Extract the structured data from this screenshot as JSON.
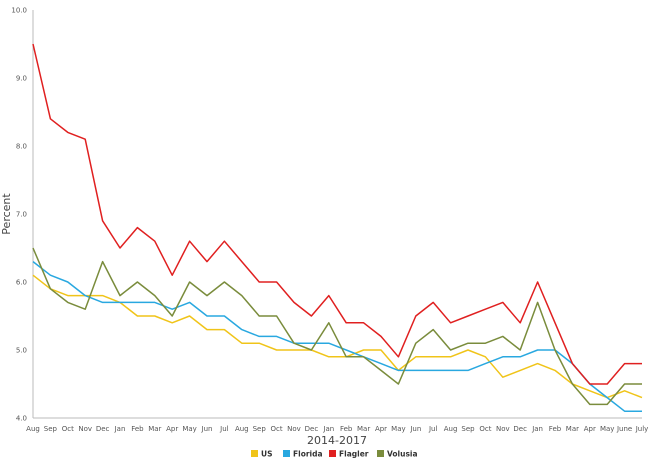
{
  "chart_data": {
    "type": "line",
    "title": "",
    "xlabel": "2014-2017",
    "ylabel": "Percent",
    "ylim": [
      4.0,
      10.0
    ],
    "yticks": [
      "4.0",
      "5.0",
      "6.0",
      "7.0",
      "8.0",
      "9.0",
      "10.0"
    ],
    "grid": false,
    "legend": "bottom-center",
    "categories": [
      "Aug",
      "Sep",
      "Oct",
      "Nov",
      "Dec",
      "Jan",
      "Feb",
      "Mar",
      "Apr",
      "May",
      "Jun",
      "Jul",
      "Aug",
      "Sep",
      "Oct",
      "Nov",
      "Dec",
      "Jan",
      "Feb",
      "Mar",
      "Apr",
      "May",
      "Jun",
      "Jul",
      "Aug",
      "Sep",
      "Oct",
      "Nov",
      "Dec",
      "Jan",
      "Feb",
      "Mar",
      "Apr",
      "May",
      "June",
      "July"
    ],
    "series": [
      {
        "name": "US",
        "color": "#f0c419",
        "values": [
          6.1,
          5.9,
          5.8,
          5.8,
          5.8,
          5.7,
          5.5,
          5.5,
          5.4,
          5.5,
          5.3,
          5.3,
          5.1,
          5.1,
          5.0,
          5.0,
          5.0,
          4.9,
          4.9,
          5.0,
          5.0,
          4.7,
          4.9,
          4.9,
          4.9,
          5.0,
          4.9,
          4.6,
          4.7,
          4.8,
          4.7,
          4.5,
          4.4,
          4.3,
          4.4,
          4.3
        ]
      },
      {
        "name": "Florida",
        "color": "#29a8e0",
        "values": [
          6.3,
          6.1,
          6.0,
          5.8,
          5.7,
          5.7,
          5.7,
          5.7,
          5.6,
          5.7,
          5.5,
          5.5,
          5.3,
          5.2,
          5.2,
          5.1,
          5.1,
          5.1,
          5.0,
          4.9,
          4.8,
          4.7,
          4.7,
          4.7,
          4.7,
          4.7,
          4.8,
          4.9,
          4.9,
          5.0,
          5.0,
          4.8,
          4.5,
          4.3,
          4.1,
          4.1
        ]
      },
      {
        "name": "Flagler",
        "color": "#e02020",
        "values": [
          9.5,
          8.4,
          8.2,
          8.1,
          6.9,
          6.5,
          6.8,
          6.6,
          6.1,
          6.6,
          6.3,
          6.6,
          6.3,
          6.0,
          6.0,
          5.7,
          5.5,
          5.8,
          5.4,
          5.4,
          5.2,
          4.9,
          5.5,
          5.7,
          5.4,
          5.5,
          5.6,
          5.7,
          5.4,
          6.0,
          5.4,
          4.8,
          4.5,
          4.5,
          4.8,
          4.8
        ]
      },
      {
        "name": "Volusia",
        "color": "#7a8c3c",
        "values": [
          6.5,
          5.9,
          5.7,
          5.6,
          6.3,
          5.8,
          6.0,
          5.8,
          5.5,
          6.0,
          5.8,
          6.0,
          5.8,
          5.5,
          5.5,
          5.1,
          5.0,
          5.4,
          4.9,
          4.9,
          4.7,
          4.5,
          5.1,
          5.3,
          5.0,
          5.1,
          5.1,
          5.2,
          5.0,
          5.7,
          5.0,
          4.5,
          4.2,
          4.2,
          4.5,
          4.5
        ]
      }
    ]
  }
}
